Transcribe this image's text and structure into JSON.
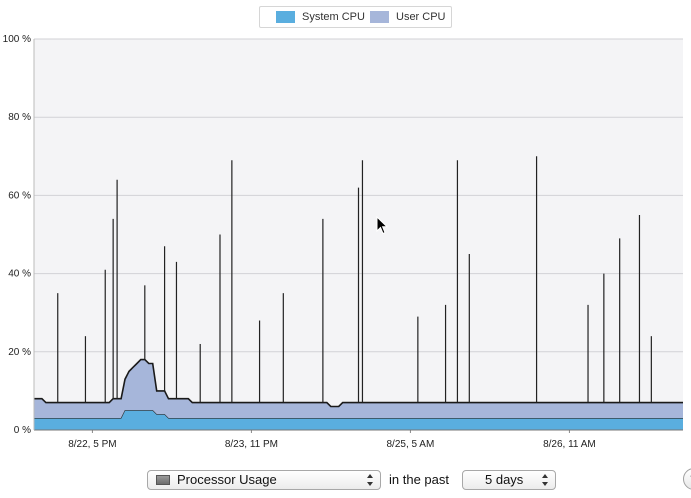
{
  "legend": {
    "items": [
      {
        "label": "System CPU",
        "color": "#5aaedf"
      },
      {
        "label": "User CPU",
        "color": "#a6b6da"
      }
    ]
  },
  "chart_data": {
    "type": "area",
    "title": "",
    "xlabel": "",
    "ylabel": "",
    "ylim": [
      0,
      100
    ],
    "y_ticks": [
      "0 %",
      "20 %",
      "40 %",
      "60 %",
      "80 %",
      "100 %"
    ],
    "x_ticks": [
      "8/22, 5 PM",
      "8/23, 11 PM",
      "8/25, 5 AM",
      "8/26, 11 AM"
    ],
    "grid": true,
    "legend_position": "top-center",
    "series": [
      {
        "name": "System CPU",
        "color": "#5aaedf",
        "values": [
          3,
          3,
          3,
          3,
          3,
          3,
          3,
          3,
          3,
          3,
          3,
          3,
          3,
          3,
          3,
          3,
          3,
          3,
          3,
          3,
          3,
          3,
          3,
          5,
          5,
          5,
          5,
          5,
          5,
          5,
          5,
          4,
          4,
          4,
          3,
          3,
          3,
          3,
          3,
          3,
          3,
          3,
          3,
          3,
          3,
          3,
          3,
          3,
          3,
          3,
          3,
          3,
          3,
          3,
          3,
          3,
          3,
          3,
          3,
          3,
          3,
          3,
          3,
          3,
          3,
          3,
          3,
          3,
          3,
          3,
          3,
          3,
          3,
          3,
          3,
          3,
          3,
          3,
          3,
          3,
          3,
          3,
          3,
          3,
          3,
          3,
          3,
          3,
          3,
          3,
          3,
          3,
          3,
          3,
          3,
          3,
          3,
          3,
          3,
          3,
          3,
          3,
          3,
          3,
          3,
          3,
          3,
          3,
          3,
          3,
          3,
          3,
          3,
          3,
          3,
          3,
          3,
          3,
          3,
          3,
          3,
          3,
          3,
          3,
          3,
          3,
          3,
          3,
          3,
          3,
          3,
          3,
          3,
          3,
          3,
          3,
          3,
          3,
          3,
          3,
          3,
          3,
          3,
          3,
          3,
          3,
          3,
          3,
          3,
          3,
          3,
          3,
          3,
          3,
          3,
          3,
          3,
          3,
          3,
          3,
          3,
          3,
          3,
          3,
          3
        ]
      },
      {
        "name": "User CPU",
        "color": "#a6b6da",
        "values": [
          5,
          5,
          5,
          4,
          4,
          4,
          4,
          4,
          4,
          4,
          4,
          4,
          4,
          4,
          4,
          4,
          4,
          4,
          4,
          4,
          5,
          5,
          5,
          8,
          10,
          11,
          12,
          13,
          13,
          12,
          12,
          6,
          6,
          6,
          5,
          5,
          5,
          5,
          5,
          5,
          4,
          4,
          4,
          4,
          4,
          4,
          4,
          4,
          4,
          4,
          4,
          4,
          4,
          4,
          4,
          4,
          4,
          4,
          4,
          4,
          4,
          4,
          4,
          4,
          4,
          4,
          4,
          4,
          4,
          4,
          4,
          4,
          4,
          4,
          4,
          3,
          3,
          3,
          4,
          4,
          4,
          4,
          4,
          4,
          4,
          4,
          4,
          4,
          4,
          4,
          4,
          4,
          4,
          4,
          4,
          4,
          4,
          4,
          4,
          4,
          4,
          4,
          4,
          4,
          4,
          4,
          4,
          4,
          4,
          4,
          4,
          4,
          4,
          4,
          4,
          4,
          4,
          4,
          4,
          4,
          4,
          4,
          4,
          4,
          4,
          4,
          4,
          4,
          4,
          4,
          4,
          4,
          4,
          4,
          4,
          4,
          4,
          4,
          4,
          4,
          4,
          4,
          4,
          4,
          4,
          4,
          4,
          4,
          4,
          4,
          4,
          4,
          4,
          4,
          4,
          4,
          4,
          4,
          4,
          4,
          4,
          4,
          4,
          4,
          4
        ]
      }
    ],
    "spikes": [
      {
        "index": 6,
        "value": 35
      },
      {
        "index": 13,
        "value": 24
      },
      {
        "index": 18,
        "value": 41
      },
      {
        "index": 20,
        "value": 54
      },
      {
        "index": 21,
        "value": 64
      },
      {
        "index": 28,
        "value": 37
      },
      {
        "index": 33,
        "value": 47
      },
      {
        "index": 36,
        "value": 43
      },
      {
        "index": 42,
        "value": 22
      },
      {
        "index": 47,
        "value": 50
      },
      {
        "index": 50,
        "value": 69
      },
      {
        "index": 57,
        "value": 28
      },
      {
        "index": 63,
        "value": 35
      },
      {
        "index": 73,
        "value": 54
      },
      {
        "index": 82,
        "value": 62
      },
      {
        "index": 83,
        "value": 69
      },
      {
        "index": 97,
        "value": 29
      },
      {
        "index": 104,
        "value": 32
      },
      {
        "index": 107,
        "value": 69
      },
      {
        "index": 110,
        "value": 45
      },
      {
        "index": 127,
        "value": 70
      },
      {
        "index": 140,
        "value": 32
      },
      {
        "index": 144,
        "value": 40
      },
      {
        "index": 148,
        "value": 49
      },
      {
        "index": 153,
        "value": 55
      },
      {
        "index": 156,
        "value": 24
      }
    ]
  },
  "controls": {
    "metric_value": "Processor Usage",
    "in_the_past_label": "in the past",
    "range_value": "5 days",
    "help_label": "?"
  }
}
